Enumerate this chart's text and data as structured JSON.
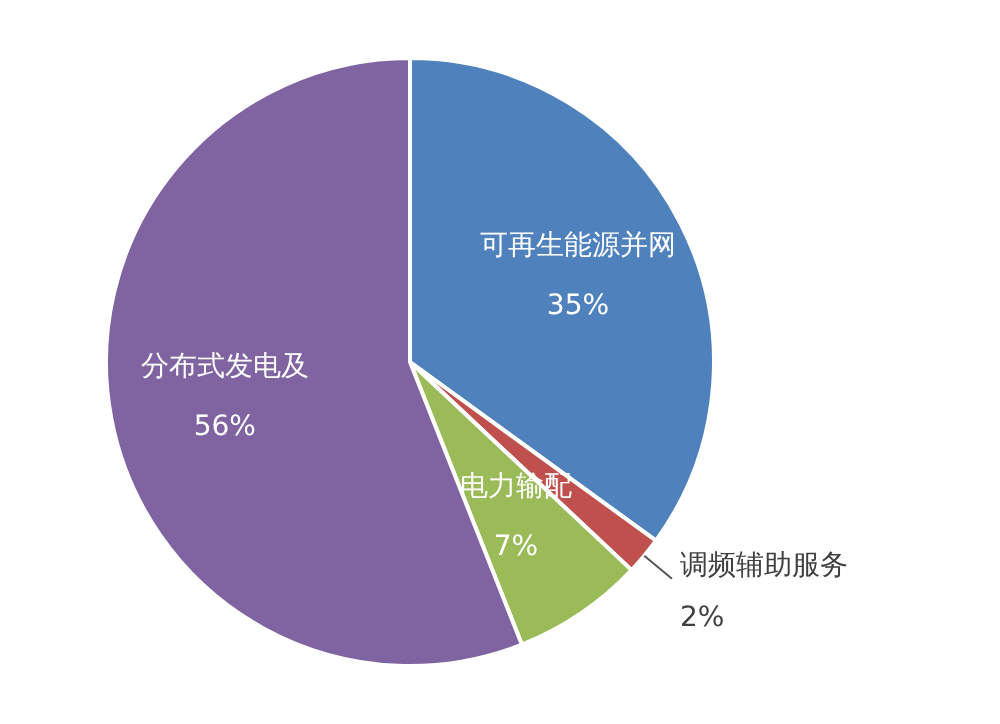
{
  "chart_data": {
    "type": "pie",
    "categories": [
      "可再生能源并网",
      "调频辅助服务",
      "电力输配",
      "分布式发电及"
    ],
    "values": [
      35,
      2,
      7,
      56
    ],
    "colors": [
      "#4f81bd",
      "#c0504d",
      "#9bbb59",
      "#8064a2"
    ],
    "value_labels": [
      "35%",
      "2%",
      "7%",
      "56%"
    ],
    "legend": false
  }
}
